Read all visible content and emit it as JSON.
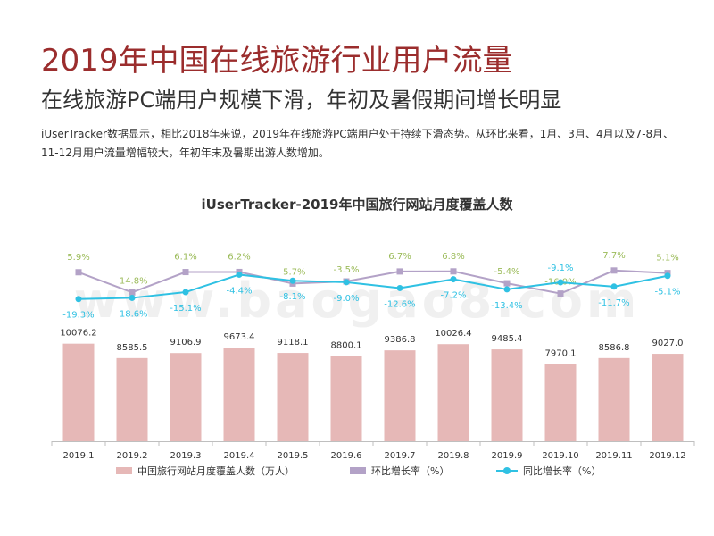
{
  "header": {
    "title": "2019年中国在线旅游行业用户流量",
    "subtitle": "在线旅游PC端用户规模下滑，年初及暑假期间增长明显",
    "description": "iUserTracker数据显示，相比2018年来说，2019年在线旅游PC端用户处于持续下滑态势。从环比来看，1月、3月、4月以及7-8月、11-12月用户流量增幅较大，年初年末及暑期出游人数增加。"
  },
  "watermark": "www.baogao8.com",
  "colors": {
    "bar": "#e6b8b7",
    "mom": "#b3a2c7",
    "yoy": "#2fc1e3",
    "mom_label": "#9bbb59",
    "title": "#9b2d2d"
  },
  "chart_data": {
    "type": "bar",
    "title": "iUserTracker-2019年中国旅行网站月度覆盖人数",
    "categories": [
      "2019.1",
      "2019.2",
      "2019.3",
      "2019.4",
      "2019.5",
      "2019.6",
      "2019.7",
      "2019.8",
      "2019.9",
      "2019.10",
      "2019.11",
      "2019.12"
    ],
    "series": [
      {
        "name": "中国旅行网站月度覆盖人数（万人）",
        "type": "bar",
        "values": [
          10076.2,
          8585.5,
          9106.9,
          9673.4,
          9118.1,
          8800.1,
          9386.8,
          10026.4,
          9485.4,
          7970.1,
          8586.8,
          9027.0
        ],
        "labels": [
          "10076.2",
          "8585.5",
          "9106.9",
          "9673.4",
          "9118.1",
          "8800.1",
          "9386.8",
          "10026.4",
          "9485.4",
          "7970.1",
          "8586.8",
          "9027.0"
        ]
      },
      {
        "name": "环比增长率（%）",
        "type": "line",
        "values": [
          5.9,
          -14.8,
          6.1,
          6.2,
          -5.7,
          -3.5,
          6.7,
          6.8,
          -5.4,
          -16.0,
          7.7,
          5.1
        ],
        "labels": [
          "5.9%",
          "-14.8%",
          "6.1%",
          "6.2%",
          "-5.7%",
          "-3.5%",
          "6.7%",
          "6.8%",
          "-5.4%",
          "-16.0%",
          "7.7%",
          "5.1%"
        ]
      },
      {
        "name": "同比增长率（%）",
        "type": "line",
        "values": [
          -19.3,
          -18.6,
          -15.1,
          -4.4,
          -8.1,
          -9.0,
          -12.6,
          -7.2,
          -13.4,
          -9.1,
          -11.7,
          -5.1
        ],
        "labels": [
          "-19.3%",
          "-18.6%",
          "-15.1%",
          "-4.4%",
          "-8.1%",
          "-9.0%",
          "-12.6%",
          "-7.2%",
          "-13.4%",
          "-9.1%",
          "-11.7%",
          "-5.1%"
        ]
      }
    ],
    "legend": [
      "中国旅行网站月度覆盖人数（万人）",
      "环比增长率（%）",
      "同比增长率（%）"
    ],
    "legend_position": "bottom",
    "grid": false
  }
}
